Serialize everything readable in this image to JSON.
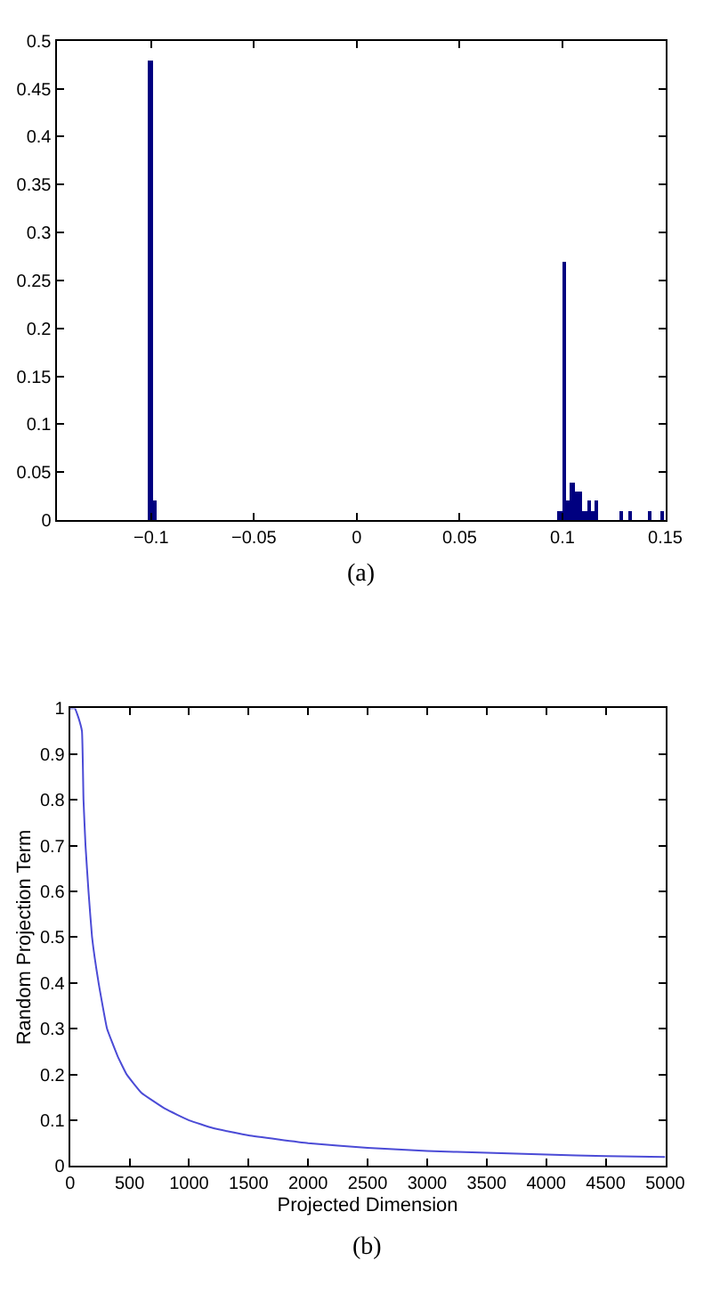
{
  "chart_data": [
    {
      "type": "histogram",
      "bins": [
        -0.1015,
        -0.0995,
        -0.0975,
        0.0975,
        0.0995,
        0.1015,
        0.1035,
        0.1055,
        0.1075,
        0.1095,
        0.1115,
        0.1135,
        0.1155,
        0.1175,
        0.1275,
        0.1295,
        0.1315,
        0.1335,
        0.1415,
        0.1435,
        0.1475,
        0.1495
      ],
      "values": [
        0.48,
        0.02,
        0,
        0.01,
        0.27,
        0.02,
        0.04,
        0.03,
        0.03,
        0.01,
        0.02,
        0.01,
        0.02,
        0,
        0.01,
        0,
        0.01,
        0,
        0.01,
        0,
        0.01
      ],
      "color": "#000080",
      "xlim": [
        -0.146,
        0.15
      ],
      "xticks": [
        {
          "value": -0.1,
          "label": "−0.1"
        },
        {
          "value": -0.05,
          "label": "−0.05"
        },
        0,
        0.05,
        0.1,
        0.15
      ],
      "ylim": [
        0,
        0.5
      ],
      "yticks": [
        0,
        0.05,
        0.1,
        0.15,
        0.2,
        0.25,
        0.3,
        0.35,
        0.4,
        0.45,
        0.5
      ],
      "annotations": [
        "(a)"
      ]
    },
    {
      "type": "line",
      "x": [
        0,
        40,
        70,
        100,
        113,
        130,
        155,
        185,
        240,
        311,
        400,
        476,
        600,
        800,
        1000,
        1200,
        1500,
        2000,
        2500,
        3000,
        3500,
        4000,
        4500,
        5000
      ],
      "series": [
        {
          "color": "#4b4bd6",
          "values": [
            1,
            1,
            0.98,
            0.95,
            0.8,
            0.7,
            0.6,
            0.5,
            0.4,
            0.3,
            0.24,
            0.2,
            0.16,
            0.125,
            0.1,
            0.083,
            0.067,
            0.05,
            0.04,
            0.033,
            0.029,
            0.025,
            0.022,
            0.02
          ]
        }
      ],
      "xlabel": "Projected Dimension",
      "ylabel": "Random Projection Term",
      "xlim": [
        0,
        5000
      ],
      "xticks": [
        0,
        500,
        1000,
        1500,
        2000,
        2500,
        3000,
        3500,
        4000,
        4500,
        5000
      ],
      "ylim": [
        0,
        1
      ],
      "yticks": [
        0,
        0.1,
        0.2,
        0.3,
        0.4,
        0.5,
        0.6,
        0.7,
        0.8,
        0.9,
        1
      ],
      "marker": "none",
      "line_style": "solid",
      "annotations": [
        "(b)"
      ]
    }
  ]
}
